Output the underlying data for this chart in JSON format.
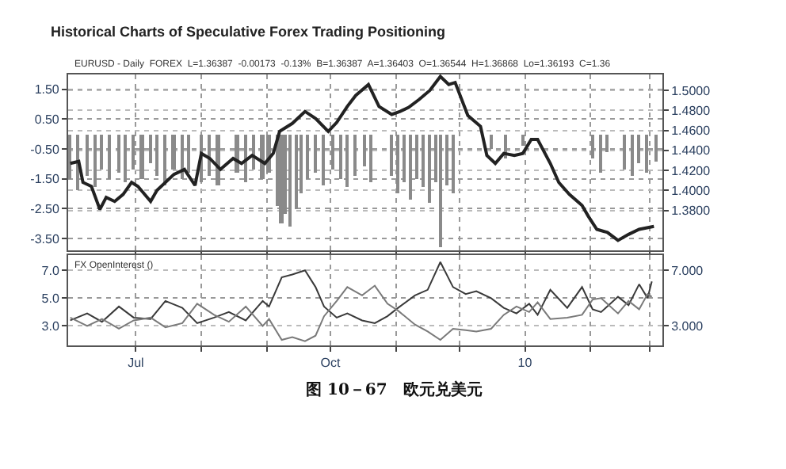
{
  "chart_data": [
    {
      "type": "bar",
      "title": "Historical Charts of Speculative Forex Trading Positioning",
      "subtitle": "EURUSD - Daily  FOREX  L=1.36387  -0.00173  -0.13%  B=1.36387  A=1.36403  O=1.36544  H=1.36868  Lo=1.36193  C=1.36",
      "tick_labels": "y",
      "grid": true,
      "xlim": [
        "2009-05-30",
        "2010-03-07"
      ],
      "xticks": [
        {
          "value": "2009-07-01",
          "label": null
        },
        {
          "value": "2009-08-01",
          "label": null
        },
        {
          "value": "2009-09-01",
          "label": null
        },
        {
          "value": "2009-10-01",
          "label": null
        },
        {
          "value": "2009-11-01",
          "label": null
        },
        {
          "value": "2009-12-01",
          "label": null
        },
        {
          "value": "2010-01-01",
          "label": null
        },
        {
          "value": "2010-02-01",
          "label": null
        },
        {
          "value": "2010-03-01",
          "label": null
        }
      ],
      "ylim": [
        -3.9,
        2.0
      ],
      "yticks": [
        {
          "value": 1.5,
          "label": "1.50"
        },
        {
          "value": 0.5,
          "label": "0.50"
        },
        {
          "value": -0.5,
          "label": "-0.50"
        },
        {
          "value": -1.5,
          "label": "-1.50"
        },
        {
          "value": -2.5,
          "label": "-2.50"
        },
        {
          "value": -3.5,
          "label": "-3.50"
        }
      ],
      "y2lim": [
        1.34,
        1.516
      ],
      "y2ticks": [
        {
          "value": 1.38,
          "label": "1.3800"
        },
        {
          "value": 1.4,
          "label": "1.4000"
        },
        {
          "value": 1.42,
          "label": "1.4200"
        },
        {
          "value": 1.44,
          "label": "1.4400"
        },
        {
          "value": 1.46,
          "label": "1.4600"
        },
        {
          "value": 1.48,
          "label": "1.4800"
        },
        {
          "value": 1.5,
          "label": "1.5000"
        }
      ],
      "series": [
        {
          "type": "bar",
          "color": "#8a8a8a",
          "x": [
            "2009-05-31",
            "2009-06-04",
            "2009-06-08",
            "2009-06-12",
            "2009-06-15",
            "2009-06-19",
            "2009-06-23",
            "2009-06-26",
            "2009-06-30",
            "2009-07-04",
            "2009-07-08",
            "2009-07-11",
            "2009-07-15",
            "2009-07-19",
            "2009-07-23",
            "2009-07-26",
            "2009-08-01",
            "2009-08-05",
            "2009-08-09",
            "2009-08-18",
            "2009-08-22",
            "2009-08-26",
            "2009-08-30",
            "2009-09-02",
            "2009-09-06",
            "2009-09-08",
            "2009-09-10",
            "2009-09-12",
            "2009-09-15",
            "2009-09-17",
            "2009-09-20",
            "2009-09-24",
            "2009-09-28",
            "2009-10-02",
            "2009-10-06",
            "2009-10-09",
            "2009-10-13",
            "2009-10-17",
            "2009-10-20",
            "2009-10-30",
            "2009-11-02",
            "2009-11-05",
            "2009-11-08",
            "2009-11-11",
            "2009-11-14",
            "2009-11-17",
            "2009-11-20",
            "2009-11-22",
            "2009-11-25",
            "2009-11-28",
            "2009-12-16",
            "2009-12-23",
            "2009-12-31",
            "2010-02-02",
            "2010-02-06",
            "2010-02-09",
            "2010-02-17",
            "2010-02-21",
            "2010-02-24",
            "2010-02-28",
            "2010-03-04"
          ],
          "values": [
            -1.5,
            -1.9,
            -1.4,
            -1.8,
            -1.2,
            -1.5,
            -1.3,
            -1.6,
            -1.2,
            -1.5,
            -1.0,
            -1.4,
            -1.7,
            -1.2,
            -1.5,
            -1.3,
            -1.6,
            -1.4,
            -1.7,
            -1.3,
            -1.6,
            -1.2,
            -1.5,
            -1.3,
            -2.4,
            -3.0,
            -2.7,
            -3.1,
            -2.5,
            -2.0,
            -1.5,
            -1.3,
            -1.7,
            -1.2,
            -1.5,
            -1.8,
            -1.4,
            -1.1,
            -1.6,
            -1.4,
            -2.0,
            -1.6,
            -2.2,
            -1.5,
            -1.8,
            -2.3,
            -1.6,
            -3.8,
            -1.7,
            -2.0,
            -0.5,
            -0.8,
            -0.4,
            -0.8,
            -1.3,
            -0.6,
            -1.2,
            -1.4,
            -1.0,
            -1.3,
            -0.9
          ]
        },
        {
          "type": "line",
          "axis": "y2",
          "color": "#222222",
          "x": [
            "2009-05-31",
            "2009-06-04",
            "2009-06-06",
            "2009-06-10",
            "2009-06-14",
            "2009-06-17",
            "2009-06-21",
            "2009-06-25",
            "2009-06-29",
            "2009-07-02",
            "2009-07-08",
            "2009-07-11",
            "2009-07-19",
            "2009-07-24",
            "2009-07-29",
            "2009-08-01",
            "2009-08-05",
            "2009-08-10",
            "2009-08-16",
            "2009-08-20",
            "2009-08-25",
            "2009-08-31",
            "2009-09-04",
            "2009-09-07",
            "2009-09-13",
            "2009-09-19",
            "2009-09-24",
            "2009-09-30",
            "2009-10-04",
            "2009-10-09",
            "2009-10-13",
            "2009-10-19",
            "2009-10-24",
            "2009-10-30",
            "2009-11-03",
            "2009-11-07",
            "2009-11-12",
            "2009-11-17",
            "2009-11-22",
            "2009-11-26",
            "2009-11-29",
            "2009-12-05",
            "2009-12-11",
            "2009-12-14",
            "2009-12-18",
            "2009-12-22",
            "2009-12-27",
            "2009-12-31",
            "2010-01-04",
            "2010-01-07",
            "2010-01-13",
            "2010-01-17",
            "2010-01-22",
            "2010-01-28",
            "2010-01-31",
            "2010-02-04",
            "2010-02-09",
            "2010-02-14",
            "2010-02-19",
            "2010-02-24",
            "2010-03-03"
          ],
          "values": [
            1.427,
            1.429,
            1.408,
            1.404,
            1.381,
            1.393,
            1.389,
            1.396,
            1.408,
            1.404,
            1.389,
            1.4,
            1.416,
            1.421,
            1.405,
            1.437,
            1.432,
            1.421,
            1.432,
            1.427,
            1.435,
            1.427,
            1.437,
            1.459,
            1.467,
            1.479,
            1.472,
            1.459,
            1.468,
            1.484,
            1.495,
            1.506,
            1.484,
            1.476,
            1.479,
            1.483,
            1.491,
            1.5,
            1.514,
            1.506,
            1.508,
            1.475,
            1.464,
            1.435,
            1.427,
            1.437,
            1.435,
            1.437,
            1.451,
            1.451,
            1.427,
            1.408,
            1.396,
            1.385,
            1.374,
            1.361,
            1.358,
            1.35,
            1.356,
            1.361,
            1.364
          ]
        }
      ]
    },
    {
      "type": "line",
      "grid": true,
      "annotations": [
        "FX OpenInterest ()",
        "图 10－67　欧元兑美元"
      ],
      "xlim": [
        "2009-05-30",
        "2010-03-07"
      ],
      "xticks": [
        {
          "value": "2009-07-01",
          "label": "Jul"
        },
        {
          "value": "2009-08-01",
          "label": null
        },
        {
          "value": "2009-09-01",
          "label": null
        },
        {
          "value": "2009-10-01",
          "label": "Oct"
        },
        {
          "value": "2009-11-01",
          "label": null
        },
        {
          "value": "2009-12-01",
          "label": null
        },
        {
          "value": "2010-01-01",
          "label": "10"
        },
        {
          "value": "2010-02-01",
          "label": null
        },
        {
          "value": "2010-03-01",
          "label": null
        }
      ],
      "ylim": [
        1.6,
        8.1
      ],
      "yticks": [
        {
          "value": 3,
          "label": "3.0"
        },
        {
          "value": 5,
          "label": "5.0"
        },
        {
          "value": 7,
          "label": "7.0"
        }
      ],
      "y2lim": [
        1.6,
        8.1
      ],
      "y2ticks": [
        {
          "value": 3,
          "label": "3.000"
        },
        {
          "value": 7,
          "label": "7.000"
        }
      ],
      "x": [
        "2009-05-31",
        "2009-06-08",
        "2009-06-15",
        "2009-06-23",
        "2009-06-30",
        "2009-07-08",
        "2009-07-15",
        "2009-07-23",
        "2009-07-30",
        "2009-08-07",
        "2009-08-14",
        "2009-08-22",
        "2009-08-30",
        "2009-09-02",
        "2009-09-08",
        "2009-09-13",
        "2009-09-19",
        "2009-09-24",
        "2009-09-28",
        "2009-10-04",
        "2009-10-09",
        "2009-10-16",
        "2009-10-22",
        "2009-10-28",
        "2009-11-02",
        "2009-11-10",
        "2009-11-16",
        "2009-11-22",
        "2009-11-28",
        "2009-12-04",
        "2009-12-09",
        "2009-12-16",
        "2009-12-22",
        "2009-12-28",
        "2010-01-03",
        "2010-01-07",
        "2010-01-13",
        "2010-01-21",
        "2010-01-28",
        "2010-02-02",
        "2010-02-06",
        "2010-02-14",
        "2010-02-19",
        "2010-02-24",
        "2010-02-28",
        "2010-03-02"
      ],
      "series": [
        {
          "color": "#3a3a3a",
          "values": [
            3.4,
            3.9,
            3.3,
            4.4,
            3.6,
            3.5,
            4.8,
            4.3,
            3.2,
            3.6,
            4.0,
            3.4,
            4.8,
            4.4,
            6.5,
            6.7,
            7.0,
            5.8,
            4.4,
            3.6,
            3.9,
            3.4,
            3.2,
            3.7,
            4.3,
            5.2,
            5.6,
            7.6,
            5.8,
            5.3,
            5.5,
            5.0,
            4.3,
            3.9,
            4.6,
            3.8,
            5.6,
            4.3,
            5.8,
            4.2,
            4.0,
            5.1,
            4.5,
            6.0,
            5.0,
            6.2
          ]
        },
        {
          "color": "#7a7a7a",
          "axis": "y2",
          "values": [
            3.6,
            3.0,
            3.5,
            2.8,
            3.4,
            3.6,
            2.9,
            3.2,
            4.6,
            3.8,
            3.3,
            4.4,
            3.0,
            3.5,
            2.0,
            2.2,
            1.9,
            2.3,
            3.7,
            4.8,
            5.8,
            5.2,
            5.9,
            4.6,
            4.1,
            3.1,
            2.6,
            2.0,
            2.8,
            2.7,
            2.6,
            2.8,
            3.8,
            4.4,
            4.0,
            4.7,
            3.5,
            3.6,
            3.8,
            4.9,
            5.0,
            3.9,
            4.8,
            4.2,
            5.3,
            5.1
          ]
        }
      ]
    }
  ]
}
